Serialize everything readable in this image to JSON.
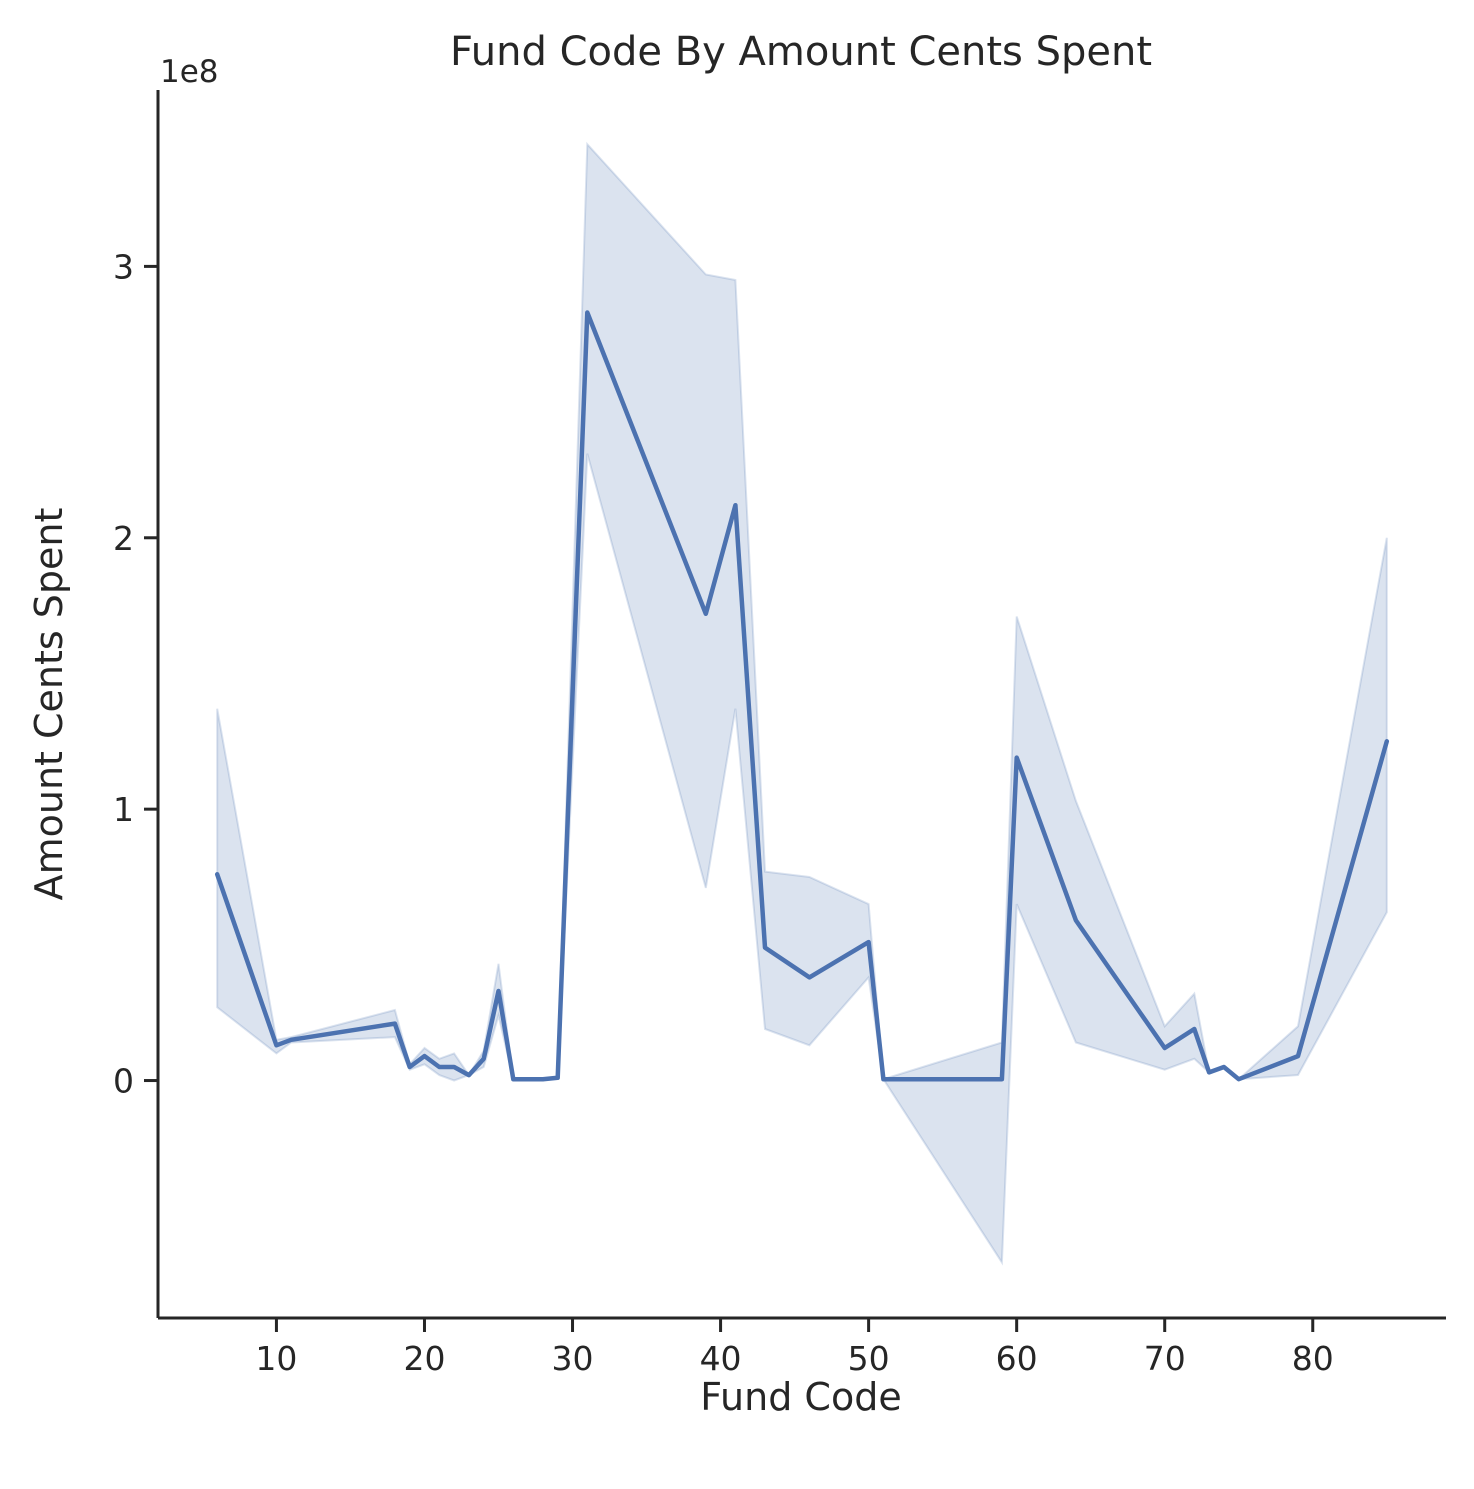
{
  "chart_data": {
    "type": "line",
    "title": "Fund Code By Amount Cents Spent",
    "xlabel": "Fund Code",
    "ylabel": "Amount Cents Spent",
    "y_offset_label": "1e8",
    "xlim": [
      2,
      89
    ],
    "ylim": [
      -0.875,
      3.65
    ],
    "x_ticks": [
      10,
      20,
      30,
      40,
      50,
      60,
      70,
      80
    ],
    "y_ticks": [
      0,
      1,
      2,
      3
    ],
    "y_unit_scale": 100000000,
    "colors": {
      "line": "#4c72b0",
      "axis": "#262626"
    },
    "series": [
      {
        "x": [
          6,
          10,
          11,
          18,
          19,
          20,
          21,
          22,
          23,
          24,
          25,
          26,
          28,
          29,
          31,
          39,
          41,
          43,
          46,
          50,
          51,
          59,
          60,
          64,
          70,
          72,
          73,
          74,
          75,
          79,
          85
        ],
        "y": [
          0.76,
          0.13,
          0.15,
          0.21,
          0.05,
          0.09,
          0.05,
          0.05,
          0.02,
          0.08,
          0.33,
          0.005,
          0.005,
          0.01,
          2.83,
          1.72,
          2.12,
          0.49,
          0.38,
          0.51,
          0.005,
          0.005,
          1.19,
          0.59,
          0.12,
          0.19,
          0.03,
          0.05,
          0.005,
          0.09,
          1.25
        ],
        "lower": [
          0.27,
          0.1,
          0.14,
          0.16,
          0.04,
          0.06,
          0.02,
          0.0,
          0.02,
          0.05,
          0.24,
          0.005,
          0.005,
          0.01,
          2.31,
          0.71,
          1.37,
          0.19,
          0.13,
          0.38,
          0.005,
          -0.67,
          0.65,
          0.14,
          0.04,
          0.08,
          0.03,
          0.05,
          0.005,
          0.02,
          0.62
        ],
        "upper": [
          1.37,
          0.15,
          0.16,
          0.26,
          0.06,
          0.12,
          0.08,
          0.1,
          0.02,
          0.11,
          0.43,
          0.005,
          0.005,
          0.01,
          3.45,
          2.97,
          2.95,
          0.77,
          0.75,
          0.65,
          0.005,
          0.14,
          1.71,
          1.03,
          0.2,
          0.32,
          0.03,
          0.05,
          0.005,
          0.2,
          2.0
        ]
      }
    ]
  }
}
